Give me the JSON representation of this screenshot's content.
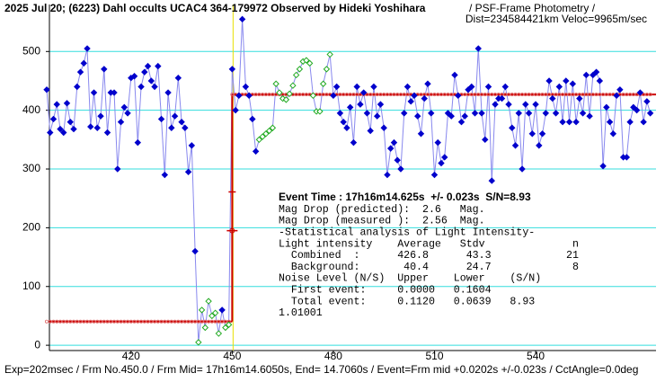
{
  "chart_data": {
    "type": "lightcurve",
    "title": "2025 Jul 20; (6223) Dahl occults UCAC4 364-179972 Observed by Hideki Yoshihara",
    "subtitle": "/ PSF-Frame Photometry /",
    "subtitle2": "Dist=234584421km Veloc=9965m/sec",
    "footer": "Exp=202msec / Frm No.450.0 / Frm Mid= 17h16m14.6050s, End= 14.7060s / Event=Frm mid +0.0202s +/-0.023s / CctAngle=0.0deg",
    "annotations": [
      "Event Time : 17h16m14.625s  +/- 0.023s  S/N=8.93",
      "Mag Drop (predicted):  2.6   Mag.",
      "Mag Drop (measured ):  2.56  Mag.",
      "-Statistical analysis of Light Intensity-",
      "Light intensity    Average   Stdv              n",
      "  Combined  :      426.8      43.3            21",
      "  Background:       40.4      24.7             8",
      "Noise Level (N/S)  Upper    Lower    (S/N)",
      "  First event:     0.0000   0.1604",
      "  Total event:     0.1120   0.0639   8.93",
      "1.01001"
    ],
    "xlim": [
      395.8,
      575.7
    ],
    "ylim": [
      -9,
      580
    ],
    "xticks": [
      420,
      450,
      480,
      510,
      540
    ],
    "yticks": [
      0,
      100,
      200,
      300,
      400,
      500
    ],
    "grid": true,
    "x": [
      395,
      396,
      397,
      398,
      399,
      400,
      401,
      402,
      403,
      404,
      405,
      406,
      407,
      408,
      409,
      410,
      411,
      412,
      413,
      414,
      415,
      416,
      417,
      418,
      419,
      420,
      421,
      422,
      423,
      424,
      425,
      426,
      427,
      428,
      429,
      430,
      431,
      432,
      433,
      434,
      435,
      436,
      437,
      438,
      439,
      440,
      441,
      442,
      443,
      444,
      445,
      446,
      447,
      448,
      449,
      450,
      451,
      452,
      453,
      454,
      455,
      456,
      457,
      458,
      459,
      460,
      461,
      462,
      463,
      464,
      465,
      466,
      467,
      468,
      469,
      470,
      471,
      472,
      473,
      474,
      475,
      476,
      477,
      478,
      479,
      480,
      481,
      482,
      483,
      484,
      485,
      486,
      487,
      488,
      489,
      490,
      491,
      492,
      493,
      494,
      495,
      496,
      497,
      498,
      499,
      500,
      501,
      502,
      503,
      504,
      505,
      506,
      507,
      508,
      509,
      510,
      511,
      512,
      513,
      514,
      515,
      516,
      517,
      518,
      519,
      520,
      521,
      522,
      523,
      524,
      525,
      526,
      527,
      528,
      529,
      530,
      531,
      532,
      533,
      534,
      535,
      536,
      537,
      538,
      539,
      540,
      541,
      542,
      543,
      544,
      545,
      546,
      547,
      548,
      549,
      550,
      551,
      552,
      553,
      554,
      555,
      556,
      557,
      558,
      559,
      560,
      561,
      562,
      563,
      564,
      565,
      566,
      567,
      568,
      569,
      570,
      571,
      572,
      573,
      574
    ],
    "series": [
      {
        "color": "#0000cc",
        "marker": "filled",
        "values": [
          435,
          362,
          385,
          410,
          368,
          362,
          412,
          380,
          368,
          440,
          465,
          480,
          505,
          372,
          430,
          370,
          390,
          470,
          362,
          430,
          430,
          300,
          380,
          405,
          395,
          455,
          458,
          345,
          440,
          465,
          475,
          450,
          440,
          475,
          385,
          290,
          430,
          370,
          390,
          455,
          380,
          370,
          295,
          340,
          160,
          null,
          null,
          null,
          null,
          null,
          null,
          null,
          60,
          null,
          null,
          470,
          400,
          425,
          555,
          440,
          425,
          385,
          330,
          null,
          null,
          null,
          null,
          null,
          null,
          null,
          null,
          null,
          null,
          null,
          null,
          null,
          null,
          null,
          null,
          null,
          null,
          null,
          null,
          null,
          null,
          425,
          440,
          395,
          380,
          370,
          405,
          345,
          440,
          410,
          430,
          395,
          365,
          440,
          390,
          410,
          370,
          290,
          335,
          345,
          315,
          300,
          395,
          440,
          415,
          425,
          390,
          360,
          420,
          445,
          395,
          290,
          345,
          310,
          320,
          395,
          390,
          460,
          425,
          380,
          390,
          435,
          440,
          395,
          505,
          395,
          350,
          440,
          280,
          410,
          420,
          420,
          440,
          410,
          370,
          340,
          395,
          300,
          410,
          395,
          360,
          410,
          340,
          360,
          395,
          450,
          420,
          395,
          440,
          380,
          450,
          380,
          445,
          380,
          420,
          395,
          460,
          390,
          460,
          465,
          450,
          305,
          405,
          380,
          360,
          425,
          435,
          320,
          320,
          380,
          405,
          400,
          430,
          380,
          415,
          395
        ]
      },
      {
        "color": "#22aa22",
        "marker": "open",
        "values": [
          null,
          null,
          null,
          null,
          null,
          null,
          null,
          null,
          null,
          null,
          null,
          null,
          null,
          null,
          null,
          null,
          null,
          null,
          null,
          null,
          null,
          null,
          null,
          null,
          null,
          null,
          null,
          null,
          null,
          null,
          null,
          null,
          null,
          null,
          null,
          null,
          null,
          null,
          null,
          null,
          null,
          null,
          null,
          null,
          null,
          5,
          60,
          30,
          75,
          50,
          55,
          20,
          null,
          30,
          35,
          null,
          null,
          null,
          null,
          null,
          null,
          null,
          null,
          350,
          355,
          360,
          365,
          370,
          445,
          430,
          420,
          418,
          428,
          442,
          460,
          470,
          483,
          485,
          480,
          425,
          398,
          398,
          445,
          470,
          495,
          null,
          null,
          null,
          null,
          null,
          null,
          null,
          null,
          null,
          null,
          null,
          null,
          null,
          null,
          null,
          null,
          null,
          null,
          null,
          null,
          null,
          null,
          null,
          null,
          null,
          null,
          null,
          null,
          null,
          null,
          null,
          null,
          null,
          null,
          null,
          null,
          null,
          null,
          null,
          null,
          null,
          null,
          null,
          null,
          null,
          null,
          null,
          null,
          null,
          null,
          null,
          null,
          null,
          null,
          null,
          null,
          null,
          null,
          null,
          null,
          null,
          null,
          null,
          null,
          null,
          null,
          null,
          null,
          null,
          null,
          null,
          null,
          null,
          null,
          null,
          null,
          null,
          null,
          null,
          null,
          null,
          null,
          null,
          null,
          null,
          null,
          null,
          null,
          null,
          null,
          null,
          null,
          null,
          null,
          null
        ]
      }
    ],
    "line_color": "#8888ee",
    "model": {
      "color": "#cc0000",
      "levels": [
        40.4,
        426.8
      ],
      "event_x": 450,
      "error_marks": [
        261,
        195
      ]
    },
    "event_line_color": "#e8e000"
  }
}
